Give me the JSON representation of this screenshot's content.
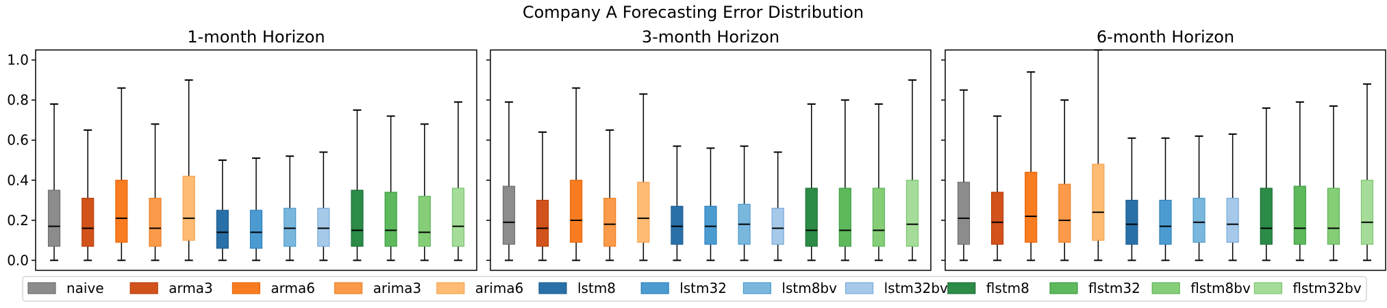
{
  "figure_title": "Company A Forecasting Error Distribution",
  "legend": {
    "placement": "bottom",
    "items": [
      {
        "name": "naive",
        "color": "#7f7f7f"
      },
      {
        "name": "arma3",
        "color": "#d62728"
      },
      {
        "name": "arma6",
        "color": "#ff7f0e"
      },
      {
        "name": "arima3",
        "color": "#fdae6b"
      },
      {
        "name": "arima6",
        "color": "#fdd0a2"
      },
      {
        "name": "lstm8",
        "color": "#1f77b4"
      },
      {
        "name": "lstm32",
        "color": "#4292c6"
      },
      {
        "name": "lstm8bv",
        "color": "#6baed6"
      },
      {
        "name": "lstm32bv",
        "color": "#9ecae1"
      },
      {
        "name": "flstm8",
        "color": "#238b45"
      },
      {
        "name": "flstm32",
        "color": "#41ab5d"
      },
      {
        "name": "flstm8bv",
        "color": "#74c476"
      },
      {
        "name": "flstm32bv",
        "color": "#a1d99b"
      }
    ]
  },
  "style": {
    "legend_fill_colors": [
      "#8c8c8c",
      "#d2521c",
      "#f97c21",
      "#fb9a49",
      "#fdbb74",
      "#2a70a8",
      "#4b9bd1",
      "#7ab7dc",
      "#a6c9ea",
      "#2b8b47",
      "#5db95c",
      "#86cd78",
      "#a6dc99"
    ],
    "legend_edge_colors": [
      "#6e6e6e",
      "#b8400c",
      "#e8670a",
      "#e8802a",
      "#f5a24e",
      "#1f5f92",
      "#2f80bd",
      "#4d9ccc",
      "#77a8d8",
      "#1f7038",
      "#3f9d44",
      "#5fb55b",
      "#7cc470"
    ],
    "median_color": "#000000",
    "whisker_color": "#000000"
  },
  "chart_data": [
    {
      "type": "box",
      "title": "1-month Horizon",
      "ylim": [
        -0.05,
        1.05
      ],
      "yticks": [
        "0.0",
        "0.2",
        "0.4",
        "0.6",
        "0.8",
        "1.0"
      ],
      "show_ytick_labels": true,
      "series": [
        {
          "name": "naive",
          "min": 0.0,
          "q1": 0.07,
          "median": 0.17,
          "q3": 0.35,
          "max": 0.78
        },
        {
          "name": "arma3",
          "min": 0.0,
          "q1": 0.07,
          "median": 0.16,
          "q3": 0.31,
          "max": 0.65
        },
        {
          "name": "arma6",
          "min": 0.0,
          "q1": 0.09,
          "median": 0.21,
          "q3": 0.4,
          "max": 0.86
        },
        {
          "name": "arima3",
          "min": 0.0,
          "q1": 0.07,
          "median": 0.16,
          "q3": 0.31,
          "max": 0.68
        },
        {
          "name": "arima6",
          "min": 0.0,
          "q1": 0.1,
          "median": 0.21,
          "q3": 0.42,
          "max": 0.9
        },
        {
          "name": "lstm8",
          "min": 0.0,
          "q1": 0.06,
          "median": 0.14,
          "q3": 0.25,
          "max": 0.5
        },
        {
          "name": "lstm32",
          "min": 0.0,
          "q1": 0.06,
          "median": 0.14,
          "q3": 0.25,
          "max": 0.51
        },
        {
          "name": "lstm8bv",
          "min": 0.0,
          "q1": 0.07,
          "median": 0.16,
          "q3": 0.26,
          "max": 0.52
        },
        {
          "name": "lstm32bv",
          "min": 0.0,
          "q1": 0.07,
          "median": 0.16,
          "q3": 0.26,
          "max": 0.54
        },
        {
          "name": "flstm8",
          "min": 0.0,
          "q1": 0.07,
          "median": 0.15,
          "q3": 0.35,
          "max": 0.75
        },
        {
          "name": "flstm32",
          "min": 0.0,
          "q1": 0.07,
          "median": 0.15,
          "q3": 0.34,
          "max": 0.72
        },
        {
          "name": "flstm8bv",
          "min": 0.0,
          "q1": 0.07,
          "median": 0.14,
          "q3": 0.32,
          "max": 0.68
        },
        {
          "name": "flstm32bv",
          "min": 0.0,
          "q1": 0.07,
          "median": 0.17,
          "q3": 0.36,
          "max": 0.79
        }
      ]
    },
    {
      "type": "box",
      "title": "3-month Horizon",
      "ylim": [
        -0.05,
        1.05
      ],
      "yticks": [
        "0.0",
        "0.2",
        "0.4",
        "0.6",
        "0.8",
        "1.0"
      ],
      "show_ytick_labels": false,
      "series": [
        {
          "name": "naive",
          "min": 0.0,
          "q1": 0.08,
          "median": 0.19,
          "q3": 0.37,
          "max": 0.79
        },
        {
          "name": "arma3",
          "min": 0.0,
          "q1": 0.07,
          "median": 0.16,
          "q3": 0.3,
          "max": 0.64
        },
        {
          "name": "arma6",
          "min": 0.0,
          "q1": 0.09,
          "median": 0.2,
          "q3": 0.4,
          "max": 0.86
        },
        {
          "name": "arima3",
          "min": 0.0,
          "q1": 0.07,
          "median": 0.18,
          "q3": 0.31,
          "max": 0.65
        },
        {
          "name": "arima6",
          "min": 0.0,
          "q1": 0.09,
          "median": 0.21,
          "q3": 0.39,
          "max": 0.83
        },
        {
          "name": "lstm8",
          "min": 0.0,
          "q1": 0.08,
          "median": 0.17,
          "q3": 0.27,
          "max": 0.57
        },
        {
          "name": "lstm32",
          "min": 0.0,
          "q1": 0.08,
          "median": 0.17,
          "q3": 0.27,
          "max": 0.56
        },
        {
          "name": "lstm8bv",
          "min": 0.0,
          "q1": 0.08,
          "median": 0.18,
          "q3": 0.28,
          "max": 0.57
        },
        {
          "name": "lstm32bv",
          "min": 0.0,
          "q1": 0.08,
          "median": 0.16,
          "q3": 0.26,
          "max": 0.54
        },
        {
          "name": "flstm8",
          "min": 0.0,
          "q1": 0.07,
          "median": 0.15,
          "q3": 0.36,
          "max": 0.78
        },
        {
          "name": "flstm32",
          "min": 0.0,
          "q1": 0.07,
          "median": 0.15,
          "q3": 0.36,
          "max": 0.8
        },
        {
          "name": "flstm8bv",
          "min": 0.0,
          "q1": 0.07,
          "median": 0.15,
          "q3": 0.36,
          "max": 0.78
        },
        {
          "name": "flstm32bv",
          "min": 0.0,
          "q1": 0.07,
          "median": 0.18,
          "q3": 0.4,
          "max": 0.9
        }
      ]
    },
    {
      "type": "box",
      "title": "6-month Horizon",
      "ylim": [
        -0.05,
        1.05
      ],
      "yticks": [
        "0.0",
        "0.2",
        "0.4",
        "0.6",
        "0.8",
        "1.0"
      ],
      "show_ytick_labels": false,
      "series": [
        {
          "name": "naive",
          "min": 0.0,
          "q1": 0.08,
          "median": 0.21,
          "q3": 0.39,
          "max": 0.85
        },
        {
          "name": "arma3",
          "min": 0.0,
          "q1": 0.08,
          "median": 0.19,
          "q3": 0.34,
          "max": 0.72
        },
        {
          "name": "arma6",
          "min": 0.0,
          "q1": 0.09,
          "median": 0.22,
          "q3": 0.44,
          "max": 0.94
        },
        {
          "name": "arima3",
          "min": 0.0,
          "q1": 0.09,
          "median": 0.2,
          "q3": 0.38,
          "max": 0.8
        },
        {
          "name": "arima6",
          "min": 0.0,
          "q1": 0.1,
          "median": 0.24,
          "q3": 0.48,
          "max": 1.05
        },
        {
          "name": "lstm8",
          "min": 0.0,
          "q1": 0.08,
          "median": 0.18,
          "q3": 0.3,
          "max": 0.61
        },
        {
          "name": "lstm32",
          "min": 0.0,
          "q1": 0.08,
          "median": 0.17,
          "q3": 0.3,
          "max": 0.61
        },
        {
          "name": "lstm8bv",
          "min": 0.0,
          "q1": 0.09,
          "median": 0.19,
          "q3": 0.31,
          "max": 0.62
        },
        {
          "name": "lstm32bv",
          "min": 0.0,
          "q1": 0.09,
          "median": 0.18,
          "q3": 0.31,
          "max": 0.63
        },
        {
          "name": "flstm8",
          "min": 0.0,
          "q1": 0.08,
          "median": 0.16,
          "q3": 0.36,
          "max": 0.76
        },
        {
          "name": "flstm32",
          "min": 0.0,
          "q1": 0.08,
          "median": 0.16,
          "q3": 0.37,
          "max": 0.79
        },
        {
          "name": "flstm8bv",
          "min": 0.0,
          "q1": 0.08,
          "median": 0.16,
          "q3": 0.36,
          "max": 0.77
        },
        {
          "name": "flstm32bv",
          "min": 0.0,
          "q1": 0.08,
          "median": 0.19,
          "q3": 0.4,
          "max": 0.88
        }
      ]
    }
  ]
}
